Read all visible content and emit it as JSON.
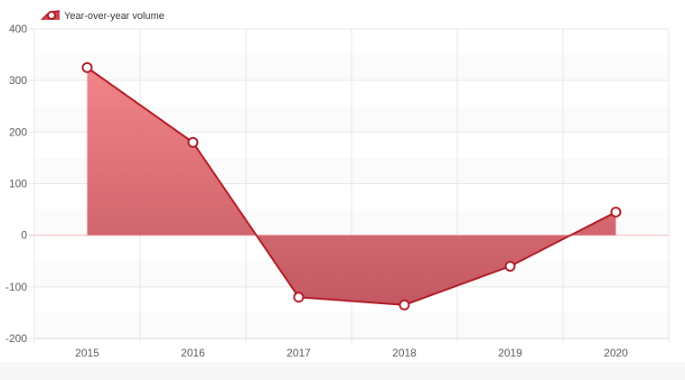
{
  "chart_data": {
    "type": "area",
    "categories": [
      "2015",
      "2016",
      "2017",
      "2018",
      "2019",
      "2020"
    ],
    "series": [
      {
        "name": "Year-over-year volume",
        "values": [
          325,
          180,
          -120,
          -135,
          -60,
          45
        ]
      }
    ],
    "ylim": [
      -200,
      400
    ],
    "yticks": [
      400,
      300,
      200,
      100,
      0,
      -100,
      -200
    ],
    "title": "",
    "xlabel": "",
    "ylabel": "",
    "grid": true,
    "legend_position": "top-left",
    "colors": {
      "line": "#b0141f",
      "fill_top": "#f07e82",
      "fill_bottom": "#c0505a",
      "zero_line": "#f2b8bb",
      "grid": "#e6e6e6",
      "marker_fill": "#ffffff"
    }
  }
}
